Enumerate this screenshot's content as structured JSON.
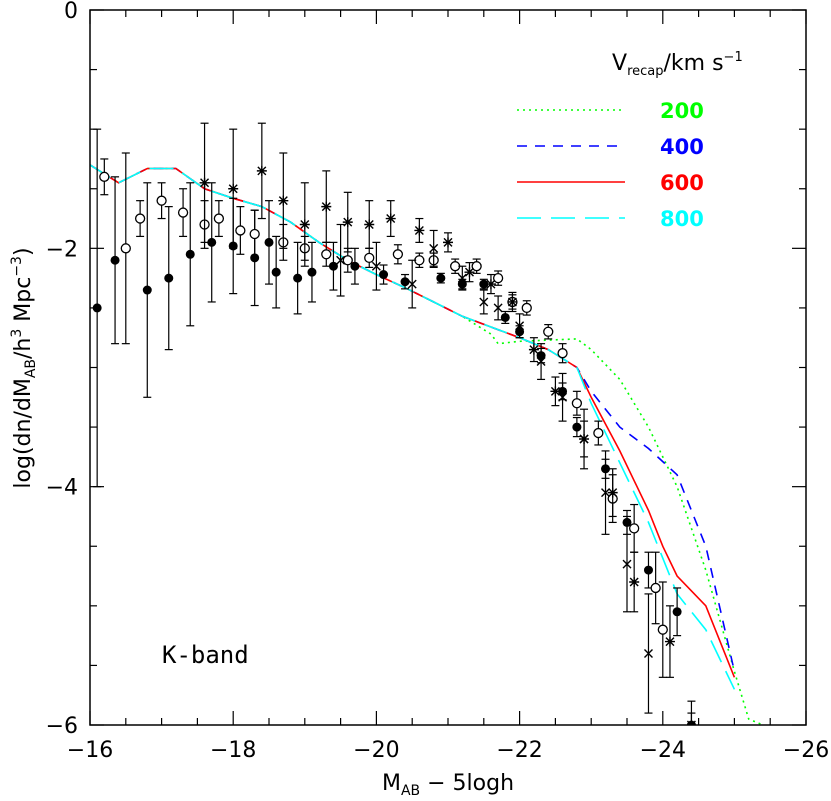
{
  "chart_data": {
    "type": "line",
    "band_label": "K-band",
    "xlabel": {
      "main": "M",
      "sub": "AB",
      "rest": " − 5logh"
    },
    "ylabel": {
      "pre": "log(dn/dM",
      "sub": "AB",
      "mid": "/h",
      "sup": "3",
      "post": " Mpc",
      "sup2": "−3",
      "end": ")"
    },
    "xlim": [
      -16,
      -26
    ],
    "ylim": [
      -6,
      0
    ],
    "x_ticks": [
      -16,
      -18,
      -20,
      -22,
      -24,
      -26
    ],
    "x_tick_labels": [
      "−16",
      "−18",
      "−20",
      "−22",
      "−24",
      "−26"
    ],
    "y_ticks": [
      0,
      -2,
      -4,
      -6
    ],
    "y_tick_labels": [
      "0",
      "−2",
      "−4",
      "−6"
    ],
    "legend": {
      "title_main": "V",
      "title_sub": "recap",
      "title_rest": "/km s",
      "title_sup": "−1",
      "placement": "top-right"
    },
    "series": [
      {
        "name": "200",
        "color": "#00ff00",
        "dash": "2,4",
        "points": [
          [
            -16,
            -1.3
          ],
          [
            -16.4,
            -1.45
          ],
          [
            -16.8,
            -1.33
          ],
          [
            -17.2,
            -1.33
          ],
          [
            -17.6,
            -1.5
          ],
          [
            -18.0,
            -1.58
          ],
          [
            -18.4,
            -1.65
          ],
          [
            -18.8,
            -1.78
          ],
          [
            -19.2,
            -1.95
          ],
          [
            -19.6,
            -2.1
          ],
          [
            -20.0,
            -2.22
          ],
          [
            -20.4,
            -2.33
          ],
          [
            -20.8,
            -2.45
          ],
          [
            -21.2,
            -2.57
          ],
          [
            -21.6,
            -2.72
          ],
          [
            -21.7,
            -2.8
          ],
          [
            -22.0,
            -2.78
          ],
          [
            -22.4,
            -2.77
          ],
          [
            -22.8,
            -2.76
          ],
          [
            -23.0,
            -2.85
          ],
          [
            -23.4,
            -3.1
          ],
          [
            -23.8,
            -3.5
          ],
          [
            -24.2,
            -4.0
          ],
          [
            -24.6,
            -4.7
          ],
          [
            -25.0,
            -5.55
          ],
          [
            -25.2,
            -5.95
          ],
          [
            -25.4,
            -6.0
          ]
        ]
      },
      {
        "name": "400",
        "color": "#0000ff",
        "dash": "10,8",
        "points": [
          [
            -16,
            -1.3
          ],
          [
            -16.4,
            -1.45
          ],
          [
            -16.8,
            -1.33
          ],
          [
            -17.2,
            -1.33
          ],
          [
            -17.6,
            -1.5
          ],
          [
            -18.0,
            -1.58
          ],
          [
            -18.4,
            -1.65
          ],
          [
            -18.8,
            -1.78
          ],
          [
            -19.2,
            -1.95
          ],
          [
            -19.6,
            -2.1
          ],
          [
            -20.0,
            -2.22
          ],
          [
            -20.4,
            -2.33
          ],
          [
            -20.8,
            -2.45
          ],
          [
            -21.2,
            -2.57
          ],
          [
            -21.6,
            -2.66
          ],
          [
            -22.0,
            -2.75
          ],
          [
            -22.4,
            -2.85
          ],
          [
            -22.8,
            -3.0
          ],
          [
            -23.0,
            -3.2
          ],
          [
            -23.4,
            -3.5
          ],
          [
            -23.8,
            -3.68
          ],
          [
            -24.2,
            -3.9
          ],
          [
            -24.6,
            -4.5
          ],
          [
            -25.0,
            -5.55
          ]
        ]
      },
      {
        "name": "600",
        "color": "#ff0000",
        "dash": "",
        "points": [
          [
            -16,
            -1.3
          ],
          [
            -16.4,
            -1.45
          ],
          [
            -16.8,
            -1.33
          ],
          [
            -17.2,
            -1.33
          ],
          [
            -17.6,
            -1.5
          ],
          [
            -18.0,
            -1.58
          ],
          [
            -18.4,
            -1.65
          ],
          [
            -18.8,
            -1.78
          ],
          [
            -19.2,
            -1.95
          ],
          [
            -19.6,
            -2.1
          ],
          [
            -20.0,
            -2.22
          ],
          [
            -20.4,
            -2.33
          ],
          [
            -20.8,
            -2.45
          ],
          [
            -21.2,
            -2.57
          ],
          [
            -21.6,
            -2.66
          ],
          [
            -22.0,
            -2.75
          ],
          [
            -22.4,
            -2.85
          ],
          [
            -22.8,
            -3.0
          ],
          [
            -23.0,
            -3.25
          ],
          [
            -23.4,
            -3.7
          ],
          [
            -23.8,
            -4.2
          ],
          [
            -24.0,
            -4.5
          ],
          [
            -24.2,
            -4.75
          ],
          [
            -24.6,
            -5.0
          ],
          [
            -25.0,
            -5.6
          ]
        ]
      },
      {
        "name": "800",
        "color": "#00ffff",
        "dash": "24,10",
        "points": [
          [
            -16,
            -1.3
          ],
          [
            -16.4,
            -1.45
          ],
          [
            -16.8,
            -1.33
          ],
          [
            -17.2,
            -1.33
          ],
          [
            -17.6,
            -1.5
          ],
          [
            -18.0,
            -1.58
          ],
          [
            -18.4,
            -1.65
          ],
          [
            -18.8,
            -1.78
          ],
          [
            -19.2,
            -1.95
          ],
          [
            -19.6,
            -2.1
          ],
          [
            -20.0,
            -2.22
          ],
          [
            -20.4,
            -2.33
          ],
          [
            -20.8,
            -2.45
          ],
          [
            -21.2,
            -2.57
          ],
          [
            -21.6,
            -2.66
          ],
          [
            -22.0,
            -2.75
          ],
          [
            -22.4,
            -2.85
          ],
          [
            -22.8,
            -3.0
          ],
          [
            -23.0,
            -3.3
          ],
          [
            -23.4,
            -3.8
          ],
          [
            -23.8,
            -4.3
          ],
          [
            -24.0,
            -4.6
          ],
          [
            -24.2,
            -4.9
          ],
          [
            -24.6,
            -5.2
          ],
          [
            -25.0,
            -5.7
          ]
        ]
      }
    ],
    "observations": [
      {
        "marker": "filled-circle",
        "points": [
          [
            -16.1,
            -2.5,
            1.5
          ],
          [
            -16.35,
            -2.1,
            0.7
          ],
          [
            -16.8,
            -2.35,
            0.9
          ],
          [
            -17.1,
            -2.25,
            0.6
          ],
          [
            -17.4,
            -2.05,
            0.6
          ],
          [
            -17.7,
            -1.95,
            0.5
          ],
          [
            -18.0,
            -1.98,
            0.4
          ],
          [
            -18.3,
            -2.08,
            0.4
          ],
          [
            -18.5,
            -1.95,
            0.35
          ],
          [
            -18.6,
            -2.2,
            0.3
          ],
          [
            -18.9,
            -2.25,
            0.3
          ],
          [
            -19.1,
            -2.2,
            0.25
          ],
          [
            -19.4,
            -2.15,
            0.2
          ],
          [
            -19.7,
            -2.15,
            0.15
          ],
          [
            -20.1,
            -2.22,
            0.08
          ],
          [
            -20.4,
            -2.28,
            0.06
          ],
          [
            -20.9,
            -2.25,
            0.04
          ],
          [
            -21.2,
            -2.3,
            0.04
          ],
          [
            -21.5,
            -2.3,
            0.04
          ],
          [
            -21.8,
            -2.58,
            0.05
          ],
          [
            -22.0,
            -2.7,
            0.05
          ],
          [
            -22.3,
            -2.9,
            0.06
          ],
          [
            -22.6,
            -3.2,
            0.07
          ],
          [
            -22.8,
            -3.5,
            0.08
          ],
          [
            -23.2,
            -3.85,
            0.08
          ],
          [
            -23.5,
            -4.3,
            0.1
          ],
          [
            -23.8,
            -4.7,
            0.15
          ],
          [
            -24.2,
            -5.05,
            0.2
          ],
          [
            -24.4,
            -6.0,
            0.2
          ]
        ]
      },
      {
        "marker": "open-circle",
        "points": [
          [
            -16.2,
            -1.4,
            0.15
          ],
          [
            -16.5,
            -2.0,
            0.8
          ],
          [
            -16.7,
            -1.75,
            0.15
          ],
          [
            -17.0,
            -1.6,
            0.15
          ],
          [
            -17.3,
            -1.7,
            0.2
          ],
          [
            -17.6,
            -1.8,
            0.2
          ],
          [
            -17.8,
            -1.75,
            0.15
          ],
          [
            -18.1,
            -1.85,
            0.2
          ],
          [
            -18.3,
            -1.88,
            0.2
          ],
          [
            -18.7,
            -1.95,
            0.15
          ],
          [
            -19.0,
            -2.0,
            0.1
          ],
          [
            -19.3,
            -2.05,
            0.1
          ],
          [
            -19.6,
            -2.1,
            0.1
          ],
          [
            -19.9,
            -2.08,
            0.08
          ],
          [
            -20.3,
            -2.05,
            0.08
          ],
          [
            -20.6,
            -2.1,
            0.06
          ],
          [
            -20.8,
            -2.1,
            0.06
          ],
          [
            -21.1,
            -2.15,
            0.06
          ],
          [
            -21.4,
            -2.15,
            0.06
          ],
          [
            -21.7,
            -2.25,
            0.06
          ],
          [
            -21.9,
            -2.45,
            0.06
          ],
          [
            -22.1,
            -2.5,
            0.06
          ],
          [
            -22.4,
            -2.7,
            0.06
          ],
          [
            -22.6,
            -2.88,
            0.08
          ],
          [
            -22.8,
            -3.3,
            0.1
          ],
          [
            -23.1,
            -3.55,
            0.1
          ],
          [
            -23.3,
            -4.1,
            0.2
          ],
          [
            -23.6,
            -4.35,
            0.2
          ],
          [
            -23.9,
            -4.85,
            0.3
          ],
          [
            -24.0,
            -5.2,
            0.4
          ]
        ]
      },
      {
        "marker": "cross",
        "points": [
          [
            -19.5,
            -2.1,
            0.3
          ],
          [
            -20.0,
            -2.15,
            0.2
          ],
          [
            -20.5,
            -2.3,
            0.2
          ],
          [
            -20.8,
            -2.0,
            0.15
          ],
          [
            -21.2,
            -2.25,
            0.1
          ],
          [
            -21.5,
            -2.45,
            0.1
          ],
          [
            -21.7,
            -2.5,
            0.1
          ],
          [
            -22.0,
            -2.65,
            0.1
          ],
          [
            -22.3,
            -2.95,
            0.15
          ],
          [
            -22.6,
            -3.25,
            0.2
          ],
          [
            -22.9,
            -3.6,
            0.25
          ],
          [
            -23.2,
            -4.05,
            0.35
          ],
          [
            -23.5,
            -4.65,
            0.4
          ],
          [
            -23.8,
            -5.4,
            0.5
          ],
          [
            -24.4,
            -6.0,
            0.1
          ]
        ]
      },
      {
        "marker": "star",
        "points": [
          [
            -17.6,
            -1.45,
            0.5
          ],
          [
            -18.0,
            -1.5,
            0.5
          ],
          [
            -18.4,
            -1.35,
            0.4
          ],
          [
            -18.7,
            -1.6,
            0.4
          ],
          [
            -19.0,
            -1.8,
            0.35
          ],
          [
            -19.3,
            -1.65,
            0.3
          ],
          [
            -19.6,
            -1.78,
            0.25
          ],
          [
            -19.9,
            -1.8,
            0.2
          ],
          [
            -20.2,
            -1.75,
            0.15
          ],
          [
            -20.6,
            -1.85,
            0.1
          ],
          [
            -21.0,
            -1.95,
            0.08
          ],
          [
            -21.3,
            -2.2,
            0.08
          ],
          [
            -21.6,
            -2.3,
            0.08
          ],
          [
            -21.9,
            -2.45,
            0.08
          ],
          [
            -22.2,
            -2.85,
            0.1
          ],
          [
            -22.5,
            -3.2,
            0.12
          ],
          [
            -22.9,
            -3.6,
            0.15
          ],
          [
            -23.3,
            -4.05,
            0.2
          ],
          [
            -23.6,
            -4.8,
            0.25
          ],
          [
            -24.1,
            -5.3,
            0.3
          ]
        ]
      }
    ]
  }
}
